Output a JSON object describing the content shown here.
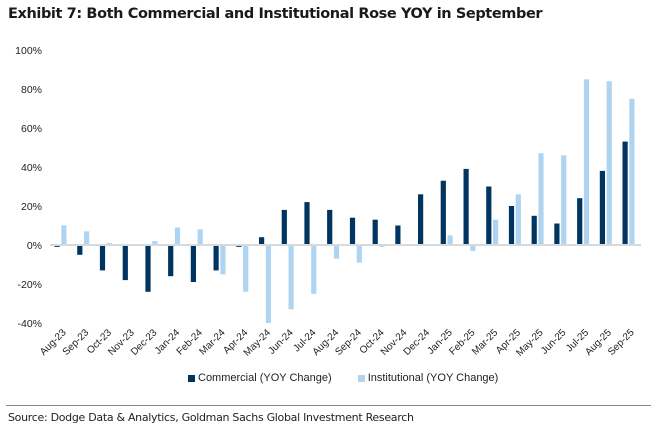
{
  "title": "Exhibit 7: Both Commercial and Institutional Rose YOY in September",
  "source": "Source: Dodge Data & Analytics, Goldman Sachs Global Investment Research",
  "colors": {
    "commercial": "#003561",
    "institutional": "#afd4f2",
    "zero_line": "#d9d9d9"
  },
  "chart_data": {
    "type": "bar",
    "title": "Exhibit 7: Both Commercial and Institutional Rose YOY in September",
    "xlabel": "",
    "ylabel": "",
    "ylim": [
      -40,
      100
    ],
    "yticks": [
      100,
      80,
      60,
      40,
      20,
      0,
      -20,
      -40
    ],
    "ytick_labels": [
      "100%",
      "80%",
      "60%",
      "40%",
      "20%",
      "0%",
      "-20%",
      "-40%"
    ],
    "grid": false,
    "legend_position": "bottom",
    "categories": [
      "Aug-23",
      "Sep-23",
      "Oct-23",
      "Nov-23",
      "Dec-23",
      "Jan-24",
      "Feb-24",
      "Mar-24",
      "Apr-24",
      "May-24",
      "Jun-24",
      "Jul-24",
      "Aug-24",
      "Sep-24",
      "Oct-24",
      "Nov-24",
      "Dec-24",
      "Jan-25",
      "Feb-25",
      "Mar-25",
      "Apr-25",
      "May-25",
      "Jun-25",
      "Jul-25",
      "Aug-25",
      "Sep-25"
    ],
    "series": [
      {
        "name": "Commercial (YOY Change)",
        "values": [
          -1,
          -5,
          -13,
          -18,
          -24,
          -16,
          -19,
          -13,
          -1,
          4,
          18,
          22,
          18,
          14,
          13,
          10,
          26,
          33,
          39,
          30,
          20,
          15,
          11,
          24,
          38,
          53
        ]
      },
      {
        "name": "Institutional (YOY Change)",
        "values": [
          10,
          7,
          1,
          0.5,
          2,
          9,
          8,
          -15,
          -24,
          -40,
          -33,
          -25,
          -7,
          -9,
          -1,
          0,
          -0.5,
          5,
          -3,
          13,
          26,
          47,
          46,
          85,
          84,
          75
        ]
      }
    ]
  }
}
